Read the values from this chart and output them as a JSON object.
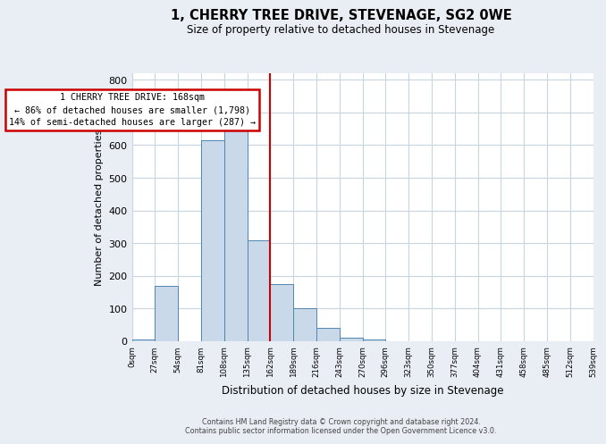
{
  "title": "1, CHERRY TREE DRIVE, STEVENAGE, SG2 0WE",
  "subtitle": "Size of property relative to detached houses in Stevenage",
  "xlabel": "Distribution of detached houses by size in Stevenage",
  "ylabel": "Number of detached properties",
  "bin_edges": [
    0,
    27,
    54,
    81,
    108,
    135,
    162,
    189,
    216,
    243,
    270,
    297,
    324,
    351,
    378,
    405,
    432,
    459,
    486,
    513,
    540
  ],
  "bar_heights": [
    5,
    170,
    0,
    615,
    650,
    310,
    175,
    100,
    40,
    10,
    5,
    0,
    0,
    0,
    0,
    0,
    0,
    0,
    0,
    0
  ],
  "bar_color": "#c9d9ea",
  "bar_edge_color": "#4f86b0",
  "reference_line_x": 162,
  "reference_line_color": "#cc0000",
  "annotation_line1": "1 CHERRY TREE DRIVE: 168sqm",
  "annotation_line2": "← 86% of detached houses are smaller (1,798)",
  "annotation_line3": "14% of semi-detached houses are larger (287) →",
  "annotation_box_color": "#cc0000",
  "xlim": [
    0,
    540
  ],
  "ylim": [
    0,
    820
  ],
  "yticks": [
    0,
    100,
    200,
    300,
    400,
    500,
    600,
    700,
    800
  ],
  "xtick_labels": [
    "0sqm",
    "27sqm",
    "54sqm",
    "81sqm",
    "108sqm",
    "135sqm",
    "162sqm",
    "189sqm",
    "216sqm",
    "243sqm",
    "270sqm",
    "296sqm",
    "323sqm",
    "350sqm",
    "377sqm",
    "404sqm",
    "431sqm",
    "458sqm",
    "485sqm",
    "512sqm",
    "539sqm"
  ],
  "footer_line1": "Contains HM Land Registry data © Crown copyright and database right 2024.",
  "footer_line2": "Contains public sector information licensed under the Open Government Licence v3.0.",
  "bg_color": "#e8eef4",
  "plot_bg_color": "#ffffff",
  "grid_color": "#c8d4de"
}
